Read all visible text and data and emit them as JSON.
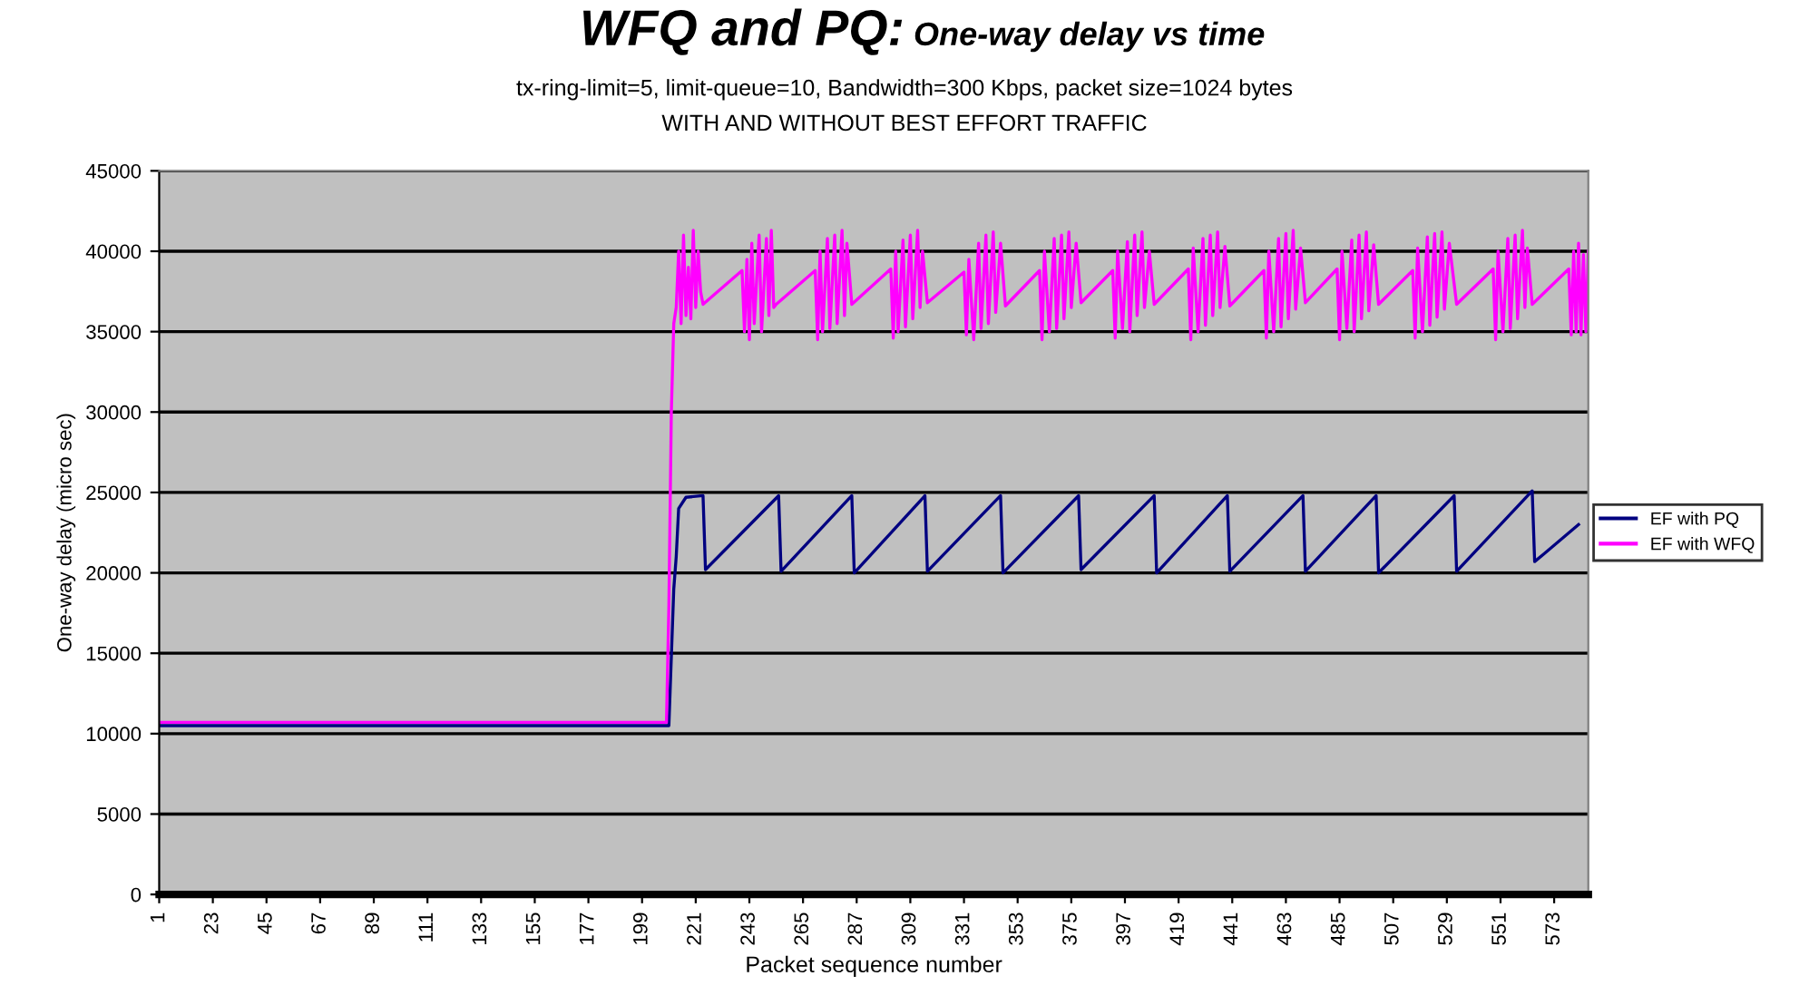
{
  "chart_data": {
    "type": "line",
    "title": "WFQ and PQ:",
    "subtitle": "One-way delay vs time",
    "annotations": [
      "tx-ring-limit=5, limit-queue=10, Bandwidth=300 Kbps, packet size=1024 bytes",
      "WITH AND WITHOUT BEST EFFORT TRAFFIC"
    ],
    "xlabel": "Packet sequence number",
    "ylabel": "One-way delay (micro sec)",
    "xlim": [
      1,
      587
    ],
    "xticks": [
      1,
      23,
      45,
      67,
      89,
      111,
      133,
      155,
      177,
      199,
      221,
      243,
      265,
      287,
      309,
      331,
      353,
      375,
      397,
      419,
      441,
      463,
      485,
      507,
      529,
      551,
      573
    ],
    "ylim": [
      0,
      45000
    ],
    "yticks": [
      0,
      5000,
      10000,
      15000,
      20000,
      25000,
      30000,
      35000,
      40000,
      45000
    ],
    "grid": "y",
    "legend": "right",
    "marker": "none",
    "line_style": "solid",
    "series": [
      {
        "name": "EF with PQ",
        "color": "#000080",
        "x": [
          1,
          210,
          212,
          213,
          214,
          217,
          224,
          225,
          255,
          256,
          285,
          286,
          315,
          316,
          346,
          347,
          378,
          379,
          409,
          410,
          439,
          440,
          470,
          471,
          500,
          501,
          532,
          533,
          564,
          565,
          569,
          583
        ],
        "values": [
          10500,
          10500,
          19000,
          21000,
          24000,
          24700,
          24800,
          20200,
          24800,
          20100,
          24800,
          20000,
          24800,
          20100,
          24800,
          20000,
          24800,
          20200,
          24800,
          20000,
          24800,
          20100,
          24800,
          20100,
          24800,
          20000,
          24800,
          20100,
          25100,
          20700,
          21200,
          23000
        ]
      },
      {
        "name": "EF with WFQ",
        "color": "#ff00ff",
        "x": [
          1,
          209,
          210,
          211,
          212,
          213,
          214,
          215,
          216,
          217,
          218,
          219,
          220,
          221,
          222,
          223,
          224,
          240,
          241,
          242,
          243,
          244,
          245,
          247,
          248,
          250,
          251,
          252,
          253,
          254,
          270,
          271,
          272,
          273,
          275,
          276,
          278,
          279,
          281,
          282,
          283,
          285,
          301,
          302,
          303,
          304,
          306,
          307,
          309,
          310,
          312,
          313,
          314,
          316,
          331,
          332,
          333,
          335,
          337,
          338,
          340,
          341,
          343,
          344,
          346,
          348,
          362,
          363,
          364,
          366,
          368,
          369,
          371,
          372,
          374,
          375,
          377,
          379,
          392,
          393,
          394,
          396,
          398,
          399,
          401,
          402,
          404,
          405,
          407,
          409,
          423,
          424,
          425,
          427,
          429,
          430,
          432,
          433,
          435,
          436,
          438,
          440,
          454,
          455,
          456,
          458,
          460,
          461,
          463,
          464,
          466,
          467,
          469,
          471,
          484,
          485,
          486,
          488,
          490,
          491,
          493,
          494,
          496,
          497,
          499,
          501,
          515,
          516,
          517,
          519,
          521,
          522,
          524,
          525,
          527,
          528,
          530,
          533,
          548,
          549,
          550,
          552,
          554,
          555,
          557,
          558,
          560,
          561,
          562,
          564,
          579,
          580,
          581,
          582,
          583,
          584,
          585,
          586,
          587
        ],
        "values": [
          10700,
          10700,
          18000,
          30000,
          35500,
          36500,
          40000,
          35500,
          41000,
          36000,
          39000,
          35800,
          41300,
          36500,
          40000,
          37500,
          36700,
          38800,
          35000,
          39500,
          34500,
          40500,
          35500,
          41000,
          35000,
          40800,
          36000,
          41300,
          36500,
          36700,
          38800,
          34500,
          40000,
          35000,
          40800,
          35200,
          41000,
          35500,
          41300,
          36000,
          40500,
          36700,
          38900,
          34600,
          40000,
          35000,
          40700,
          35300,
          41000,
          35800,
          41300,
          36500,
          40000,
          36800,
          38700,
          34800,
          39500,
          34500,
          40500,
          35200,
          41000,
          35500,
          41200,
          36200,
          40500,
          36600,
          38800,
          34500,
          40000,
          35000,
          40800,
          35200,
          41000,
          35800,
          41200,
          36500,
          40500,
          36800,
          38800,
          34600,
          40000,
          35200,
          40600,
          35000,
          41000,
          36000,
          41200,
          36500,
          40000,
          36700,
          38900,
          34500,
          40200,
          35000,
          40800,
          35400,
          41000,
          36000,
          41200,
          36500,
          40300,
          36600,
          38800,
          34600,
          40000,
          35000,
          40800,
          35300,
          41100,
          35800,
          41300,
          36400,
          40200,
          36800,
          38900,
          34500,
          40000,
          35200,
          40700,
          35000,
          41000,
          35800,
          41200,
          36300,
          40400,
          36700,
          38800,
          34600,
          40200,
          35000,
          40900,
          35400,
          41100,
          35900,
          41200,
          36400,
          40500,
          36700,
          38900,
          34500,
          40000,
          35000,
          40800,
          35200,
          41000,
          35800,
          41300,
          36500,
          40200,
          36700,
          38900,
          34800,
          40000,
          35000,
          40500,
          34800,
          39800,
          35000,
          40000
        ]
      }
    ]
  }
}
